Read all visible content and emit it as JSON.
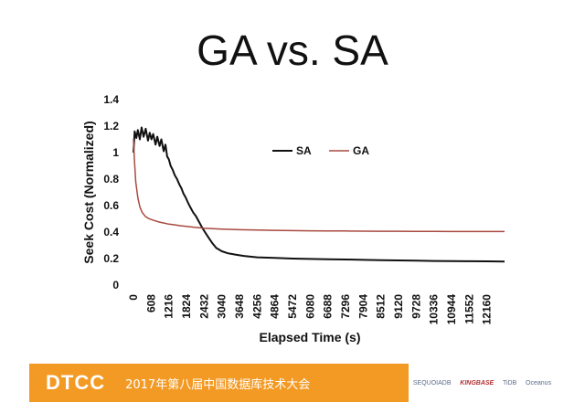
{
  "slide": {
    "title": "GA vs. SA"
  },
  "footer": {
    "logo_text": "DTCC",
    "conference_text": "2017年第八届中国数据库技术大会",
    "sponsors": [
      "SEQUOIADB",
      "KINGBASE",
      "TiDB",
      "Oceanus"
    ],
    "band_color": "#f39a24"
  },
  "chart_data": {
    "type": "line",
    "xlabel": "Elapsed Time (s)",
    "ylabel": "Seek Cost (Normalized)",
    "ylim": [
      0,
      1.4
    ],
    "yticks": [
      "0",
      "0.2",
      "0.4",
      "0.6",
      "0.8",
      "1",
      "1.2",
      "1.4"
    ],
    "xlim": [
      0,
      12768
    ],
    "xticks": [
      "0",
      "608",
      "1216",
      "1824",
      "2432",
      "3040",
      "3648",
      "4256",
      "4864",
      "5472",
      "6080",
      "6688",
      "7296",
      "7904",
      "8512",
      "9120",
      "9728",
      "10336",
      "10944",
      "11552",
      "12160"
    ],
    "legend_position": "top-center",
    "series": [
      {
        "name": "SA",
        "color": "#111111",
        "x": [
          0,
          40,
          100,
          150,
          220,
          280,
          350,
          420,
          500,
          560,
          620,
          680,
          760,
          820,
          900,
          960,
          1040,
          1100,
          1160,
          1216,
          1280,
          1350,
          1420,
          1500,
          1580,
          1650,
          1720,
          1800,
          1880,
          1950,
          2050,
          2150,
          2250,
          2350,
          2432,
          2550,
          2700,
          2850,
          3040,
          3250,
          3500,
          3800,
          4256,
          4864,
          5472,
          6080,
          6688,
          7296,
          7904,
          8512,
          9120,
          9728,
          10336,
          10944,
          11552,
          12160,
          12768
        ],
        "y": [
          1.0,
          1.16,
          1.11,
          1.17,
          1.1,
          1.19,
          1.12,
          1.18,
          1.09,
          1.15,
          1.1,
          1.14,
          1.06,
          1.12,
          1.05,
          1.1,
          1.01,
          1.06,
          0.97,
          0.95,
          0.9,
          0.87,
          0.83,
          0.8,
          0.76,
          0.73,
          0.69,
          0.66,
          0.62,
          0.59,
          0.55,
          0.52,
          0.48,
          0.44,
          0.41,
          0.37,
          0.32,
          0.28,
          0.255,
          0.24,
          0.23,
          0.22,
          0.21,
          0.205,
          0.2,
          0.197,
          0.195,
          0.193,
          0.19,
          0.188,
          0.186,
          0.184,
          0.182,
          0.181,
          0.18,
          0.179,
          0.178
        ]
      },
      {
        "name": "GA",
        "color": "#a84a40",
        "x": [
          0,
          30,
          80,
          150,
          220,
          300,
          400,
          500,
          608,
          750,
          900,
          1050,
          1216,
          1400,
          1600,
          1824,
          2100,
          2432,
          2800,
          3040,
          3648,
          4256,
          4864,
          5472,
          6080,
          6688,
          7296,
          7904,
          8512,
          9120,
          9728,
          10336,
          10944,
          11552,
          12160,
          12768
        ],
        "y": [
          1.1,
          0.95,
          0.78,
          0.66,
          0.59,
          0.55,
          0.52,
          0.505,
          0.495,
          0.485,
          0.475,
          0.468,
          0.46,
          0.455,
          0.448,
          0.443,
          0.436,
          0.43,
          0.425,
          0.422,
          0.418,
          0.415,
          0.413,
          0.411,
          0.41,
          0.409,
          0.408,
          0.407,
          0.406,
          0.406,
          0.405,
          0.405,
          0.404,
          0.404,
          0.404,
          0.404
        ]
      }
    ]
  }
}
